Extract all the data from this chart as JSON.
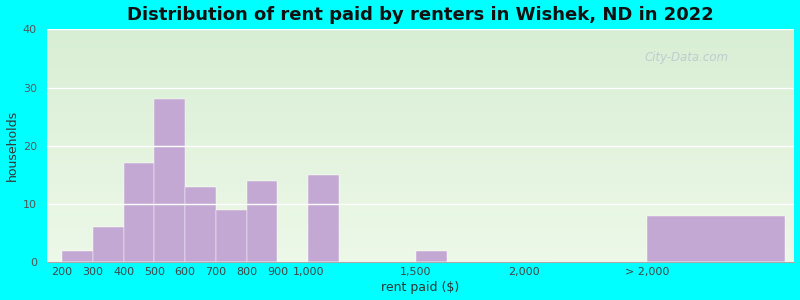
{
  "title": "Distribution of rent paid by renters in Wishek, ND in 2022",
  "xlabel": "rent paid ($)",
  "ylabel": "households",
  "bar_labels": [
    "200",
    "300",
    "400",
    "500",
    "600",
    "700",
    "800",
    "900",
    "1,000",
    "1,500",
    "2,000",
    "> 2,000"
  ],
  "bar_values": [
    2,
    6,
    17,
    28,
    13,
    9,
    14,
    0,
    15,
    2,
    0,
    8
  ],
  "bar_color": "#c4a8d4",
  "outer_bg": "#00ffff",
  "ylim": [
    0,
    40
  ],
  "yticks": [
    0,
    10,
    20,
    30,
    40
  ],
  "title_fontsize": 13,
  "axis_label_fontsize": 9,
  "tick_fontsize": 8,
  "watermark_text": "City-Data.com",
  "bg_top": "#d8eed4",
  "bg_bottom": "#edf8e8",
  "grid_color": "#ffffff",
  "positions": [
    0,
    1,
    2,
    3,
    4,
    5,
    6,
    7,
    8,
    11.5,
    15,
    19
  ],
  "bar_widths": [
    1,
    1,
    1,
    1,
    1,
    1,
    1,
    1,
    1,
    1,
    1,
    4.5
  ]
}
